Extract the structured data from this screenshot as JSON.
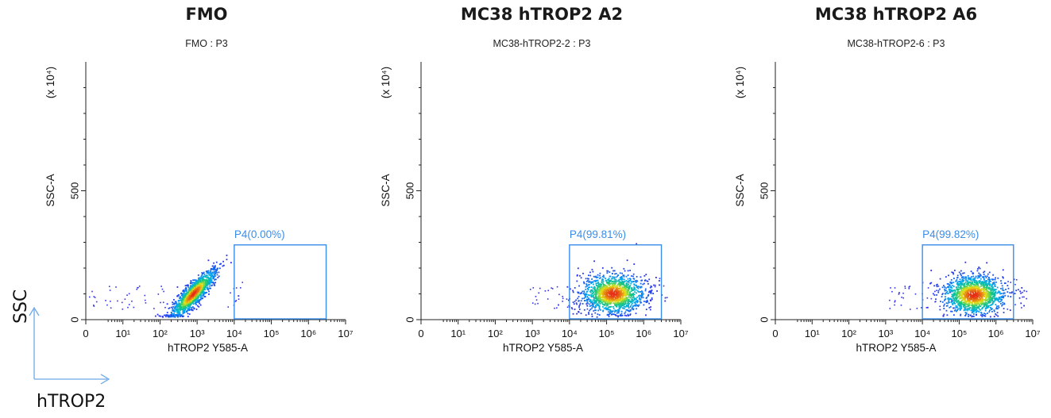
{
  "chart_data": [
    {
      "type": "scatter",
      "title": "FMO",
      "subtitle": "FMO : P3",
      "xlabel": "hTROP2 Y585-A",
      "ylabel": "SSC-A",
      "y_multiplier_label": "(x 10⁴)",
      "x_scale": "log",
      "xlim": [
        1,
        10000000
      ],
      "ylim": [
        0,
        1000
      ],
      "x_ticks": [
        "0",
        "10¹",
        "10²",
        "10³",
        "10⁴",
        "10⁵",
        "10⁶",
        "10⁷"
      ],
      "y_ticks": [
        "0",
        "500"
      ],
      "population_center": {
        "x": 800,
        "y": 100
      },
      "gate": {
        "name": "P4",
        "label": "P4(0.00%)",
        "percent": 0.0,
        "x_range": [
          10000,
          3000000
        ],
        "y_range": [
          0,
          290
        ]
      }
    },
    {
      "type": "scatter",
      "title": "MC38 hTROP2 A2",
      "subtitle": "MC38-hTROP2-2 : P3",
      "xlabel": "hTROP2 Y585-A",
      "ylabel": "SSC-A",
      "y_multiplier_label": "(x 10⁴)",
      "x_scale": "log",
      "xlim": [
        1,
        10000000
      ],
      "ylim": [
        0,
        1000
      ],
      "x_ticks": [
        "0",
        "10¹",
        "10²",
        "10³",
        "10⁴",
        "10⁵",
        "10⁶",
        "10⁷"
      ],
      "y_ticks": [
        "0",
        "500"
      ],
      "population_center": {
        "x": 150000,
        "y": 100
      },
      "gate": {
        "name": "P4",
        "label": "P4(99.81%)",
        "percent": 99.81,
        "x_range": [
          10000,
          3000000
        ],
        "y_range": [
          0,
          290
        ]
      }
    },
    {
      "type": "scatter",
      "title": "MC38 hTROP2 A6",
      "subtitle": "MC38-hTROP2-6 : P3",
      "xlabel": "hTROP2 Y585-A",
      "ylabel": "SSC-A",
      "y_multiplier_label": "(x 10⁴)",
      "x_scale": "log",
      "xlim": [
        1,
        10000000
      ],
      "ylim": [
        0,
        1000
      ],
      "x_ticks": [
        "0",
        "10¹",
        "10²",
        "10³",
        "10⁴",
        "10⁵",
        "10⁶",
        "10⁷"
      ],
      "y_ticks": [
        "0",
        "500"
      ],
      "population_center": {
        "x": 250000,
        "y": 95
      },
      "gate": {
        "name": "P4",
        "label": "P4(99.82%)",
        "percent": 99.82,
        "x_range": [
          10000,
          3000000
        ],
        "y_range": [
          0,
          290
        ]
      }
    }
  ],
  "legend": {
    "y_label": "SSC",
    "x_label": "hTROP2",
    "arrow_color": "#6ea8e6"
  },
  "colors": {
    "gate": "#3b8de8",
    "axis": "#222222"
  }
}
